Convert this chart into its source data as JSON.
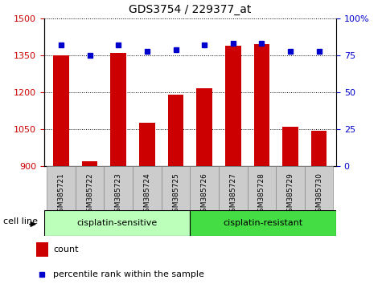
{
  "title": "GDS3754 / 229377_at",
  "samples": [
    "GSM385721",
    "GSM385722",
    "GSM385723",
    "GSM385724",
    "GSM385725",
    "GSM385726",
    "GSM385727",
    "GSM385728",
    "GSM385729",
    "GSM385730"
  ],
  "counts": [
    1350,
    920,
    1360,
    1075,
    1190,
    1215,
    1390,
    1395,
    1060,
    1045
  ],
  "percentile_ranks": [
    82,
    75,
    82,
    78,
    79,
    82,
    83,
    83,
    78,
    78
  ],
  "ylim_left": [
    900,
    1500
  ],
  "ylim_right": [
    0,
    100
  ],
  "yticks_left": [
    900,
    1050,
    1200,
    1350,
    1500
  ],
  "yticks_right": [
    0,
    25,
    50,
    75,
    100
  ],
  "bar_color": "#cc0000",
  "dot_color": "#0000cc",
  "bar_width": 0.55,
  "group1_label": "cisplatin-sensitive",
  "group2_label": "cisplatin-resistant",
  "group1_color": "#bbffbb",
  "group2_color": "#44dd44",
  "cell_line_label": "cell line",
  "legend_count_label": "count",
  "legend_pct_label": "percentile rank within the sample",
  "bar_label_color": "#cc0000",
  "dot_label_color": "#0000cc",
  "n_sensitive": 5,
  "n_resistant": 5,
  "sample_box_color": "#cccccc",
  "sample_box_edge": "#888888"
}
